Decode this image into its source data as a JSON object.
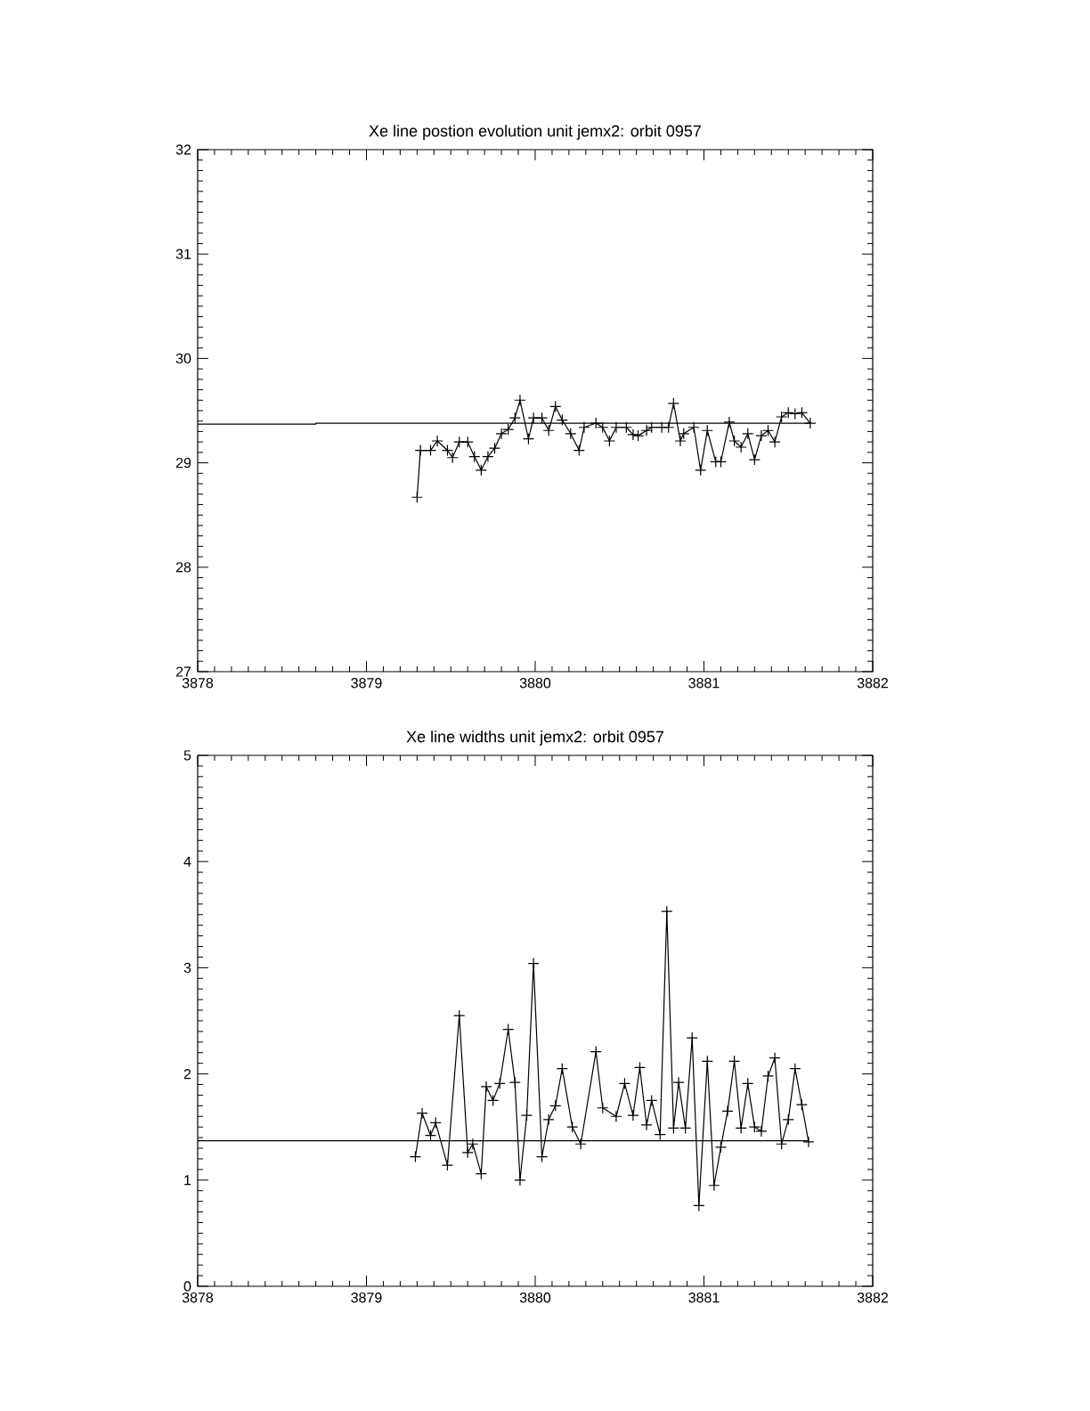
{
  "chart_data": [
    {
      "type": "line",
      "title": "Xe line postion evolution unit jemx2: orbit 0957",
      "xlim": [
        3878,
        3882
      ],
      "xticks": [
        3878,
        3879,
        3880,
        3881,
        3882
      ],
      "ylim": [
        27,
        32
      ],
      "yticks": [
        27,
        28,
        29,
        30,
        31,
        32
      ],
      "grid": false,
      "legend": false,
      "marker": "cross",
      "line_style": "solid",
      "series": [
        {
          "color": "#000000",
          "x": [
            3879.3,
            3879.32,
            3879.38,
            3879.42,
            3879.48,
            3879.51,
            3879.55,
            3879.6,
            3879.64,
            3879.68,
            3879.72,
            3879.76,
            3879.8,
            3879.84,
            3879.88,
            3879.91,
            3879.96,
            3879.99,
            3880.04,
            3880.08,
            3880.12,
            3880.16,
            3880.21,
            3880.26,
            3880.29,
            3880.36,
            3880.4,
            3880.44,
            3880.48,
            3880.54,
            3880.58,
            3880.61,
            3880.66,
            3880.69,
            3880.75,
            3880.79,
            3880.82,
            3880.86,
            3880.88,
            3880.94,
            3880.98,
            3881.02,
            3881.07,
            3881.1,
            3881.15,
            3881.18,
            3881.22,
            3881.26,
            3881.3,
            3881.34,
            3881.38,
            3881.42,
            3881.46,
            3881.5,
            3881.54,
            3881.58,
            3881.63
          ],
          "values": [
            28.67,
            29.12,
            29.12,
            29.21,
            29.12,
            29.05,
            29.2,
            29.2,
            29.06,
            28.93,
            29.06,
            29.14,
            29.28,
            29.32,
            29.43,
            29.6,
            29.23,
            29.43,
            29.43,
            29.31,
            29.54,
            29.41,
            29.28,
            29.12,
            29.34,
            29.38,
            29.34,
            29.21,
            29.34,
            29.34,
            29.27,
            29.26,
            29.31,
            29.34,
            29.34,
            29.34,
            29.57,
            29.21,
            29.28,
            29.34,
            28.93,
            29.31,
            29.01,
            29.01,
            29.39,
            29.21,
            29.15,
            29.28,
            29.03,
            29.26,
            29.31,
            29.2,
            29.44,
            29.48,
            29.47,
            29.48,
            29.38
          ]
        },
        {
          "type": "line",
          "color": "#000000",
          "marker": "none",
          "x": [
            3878,
            3878.7,
            3878.7,
            3881.63
          ],
          "values": [
            29.37,
            29.37,
            29.38,
            29.38
          ]
        }
      ]
    },
    {
      "type": "line",
      "title": "Xe line widths unit jemx2: orbit 0957",
      "xlim": [
        3878,
        3882
      ],
      "xticks": [
        3878,
        3879,
        3880,
        3881,
        3882
      ],
      "ylim": [
        0,
        5
      ],
      "yticks": [
        0,
        1,
        2,
        3,
        4,
        5
      ],
      "grid": false,
      "legend": false,
      "marker": "cross",
      "line_style": "solid",
      "series": [
        {
          "color": "#000000",
          "x": [
            3879.29,
            3879.33,
            3879.38,
            3879.41,
            3879.48,
            3879.55,
            3879.6,
            3879.63,
            3879.68,
            3879.71,
            3879.75,
            3879.79,
            3879.84,
            3879.88,
            3879.91,
            3879.95,
            3879.99,
            3880.04,
            3880.08,
            3880.12,
            3880.16,
            3880.22,
            3880.27,
            3880.36,
            3880.4,
            3880.48,
            3880.53,
            3880.58,
            3880.62,
            3880.66,
            3880.69,
            3880.74,
            3880.78,
            3880.82,
            3880.85,
            3880.89,
            3880.93,
            3880.97,
            3881.02,
            3881.06,
            3881.1,
            3881.14,
            3881.18,
            3881.22,
            3881.26,
            3881.3,
            3881.34,
            3881.38,
            3881.42,
            3881.46,
            3881.5,
            3881.54,
            3881.58,
            3881.62
          ],
          "values": [
            1.22,
            1.63,
            1.42,
            1.54,
            1.14,
            2.55,
            1.26,
            1.34,
            1.06,
            1.88,
            1.75,
            1.91,
            2.42,
            1.92,
            1.0,
            1.61,
            3.04,
            1.22,
            1.57,
            1.7,
            2.05,
            1.5,
            1.34,
            2.21,
            1.68,
            1.6,
            1.91,
            1.61,
            2.06,
            1.52,
            1.75,
            1.43,
            3.53,
            1.49,
            1.92,
            1.49,
            2.34,
            0.76,
            2.12,
            0.95,
            1.31,
            1.65,
            2.12,
            1.49,
            1.91,
            1.5,
            1.46,
            1.98,
            2.15,
            1.34,
            1.57,
            2.05,
            1.71,
            1.36
          ]
        },
        {
          "type": "line",
          "color": "#000000",
          "marker": "none",
          "x": [
            3878,
            3881.62
          ],
          "values": [
            1.37,
            1.37
          ]
        }
      ]
    }
  ]
}
